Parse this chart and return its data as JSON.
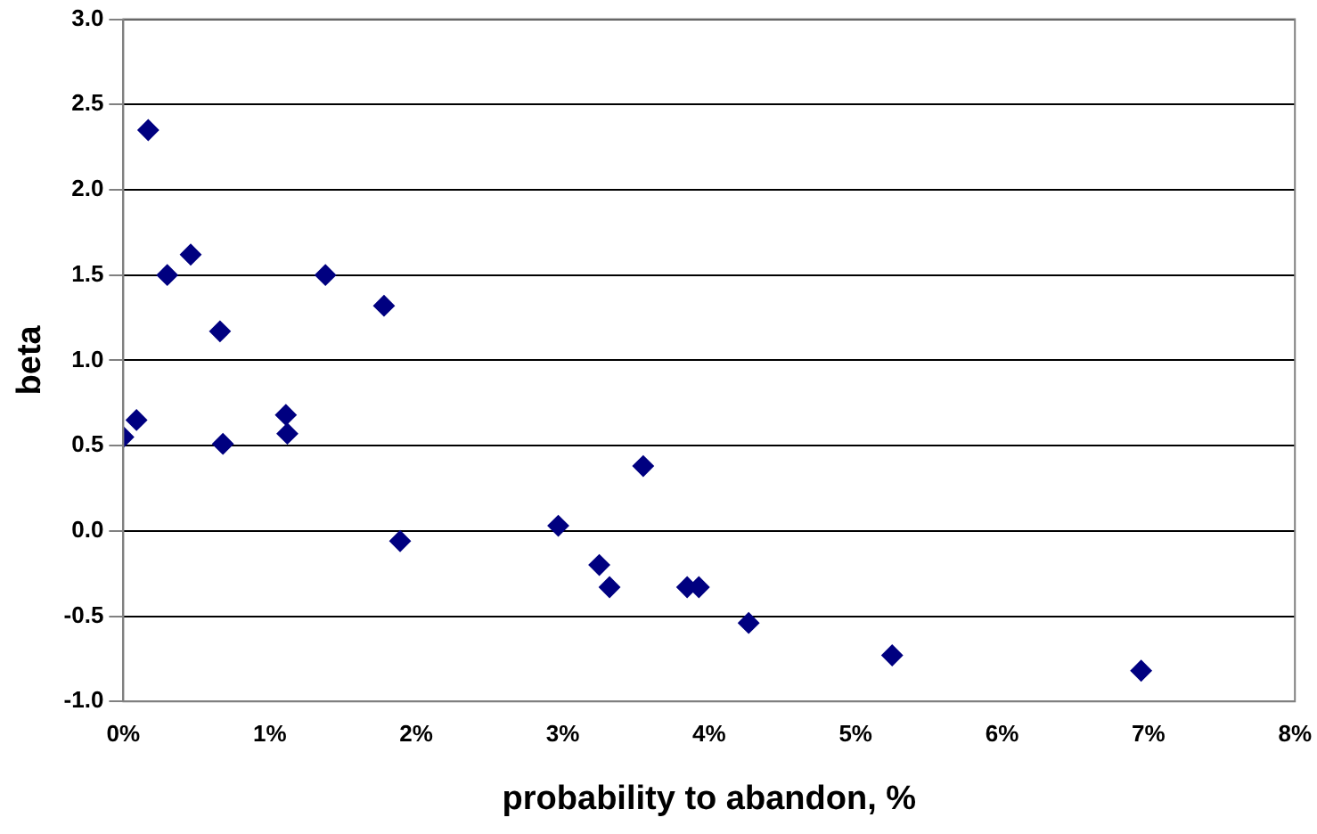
{
  "chart_data": {
    "type": "scatter",
    "xlabel": "probability to abandon, %",
    "ylabel": "beta",
    "x": [
      0,
      0.09,
      0.17,
      0.3,
      0.46,
      0.66,
      0.68,
      1.11,
      1.12,
      1.38,
      1.78,
      1.89,
      2.97,
      3.25,
      3.32,
      3.55,
      3.85,
      3.93,
      4.27,
      5.25,
      6.95
    ],
    "values": [
      0.55,
      0.65,
      2.35,
      1.5,
      1.62,
      1.17,
      0.51,
      0.68,
      0.57,
      1.5,
      1.32,
      -0.06,
      0.03,
      -0.2,
      -0.33,
      0.38,
      -0.33,
      -0.33,
      -0.54,
      -0.73,
      -0.82
    ],
    "color": "#000080",
    "marker": "diamond",
    "grid": "y",
    "legend": false,
    "xlim": [
      0,
      8
    ],
    "xticks": [
      {
        "value": 0,
        "label": "0%"
      },
      {
        "value": 1,
        "label": "1%"
      },
      {
        "value": 2,
        "label": "2%"
      },
      {
        "value": 3,
        "label": "3%"
      },
      {
        "value": 4,
        "label": "4%"
      },
      {
        "value": 5,
        "label": "5%"
      },
      {
        "value": 6,
        "label": "6%"
      },
      {
        "value": 7,
        "label": "7%"
      },
      {
        "value": 8,
        "label": "8%"
      }
    ],
    "ylim": [
      -1,
      3
    ],
    "yticks": [
      {
        "value": -1,
        "label": "-1.0"
      },
      {
        "value": -0.5,
        "label": "-0.5"
      },
      {
        "value": 0,
        "label": "0.0"
      },
      {
        "value": 0.5,
        "label": "0.5"
      },
      {
        "value": 1,
        "label": "1.0"
      },
      {
        "value": 1.5,
        "label": "1.5"
      },
      {
        "value": 2,
        "label": "2.0"
      },
      {
        "value": 2.5,
        "label": "2.5"
      },
      {
        "value": 3,
        "label": "3.0"
      }
    ]
  }
}
